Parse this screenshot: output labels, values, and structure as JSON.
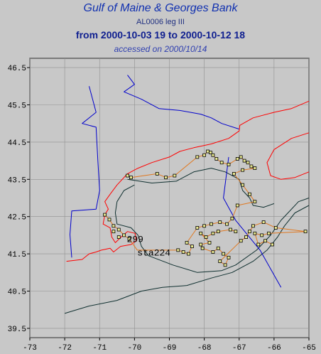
{
  "title": "Gulf of Maine & Georges Bank",
  "subtitle": "AL0006 leg III",
  "date_range": "from 2000-10-03 19 to 2000-10-12 18",
  "accessed": "accessed on 2000/10/14",
  "colors": {
    "coast": "#ff0000",
    "track": "#e07820",
    "boundary": "#0000cc",
    "isobath": "#103030",
    "station": "#e8e890",
    "background": "#c8c8c8",
    "grid": "#909090"
  },
  "axes": {
    "lon_range": [
      -73,
      -65
    ],
    "lat_range": [
      39.25,
      46.75
    ],
    "lon_ticks": [
      "-73",
      "-72",
      "-71",
      "-70",
      "-69",
      "-68",
      "-67",
      "-66",
      "-65"
    ],
    "lat_ticks": [
      "46.5",
      "45.5",
      "44.5",
      "43.5",
      "42.5",
      "41.5",
      "40.5",
      "39.5"
    ]
  },
  "station_labels": [
    {
      "text": "299",
      "lon": -70.22,
      "lat": 41.82
    },
    {
      "text": "sta224",
      "lon": -69.92,
      "lat": 41.45
    }
  ],
  "stations": [
    [
      -70.85,
      42.55
    ],
    [
      -70.72,
      42.42
    ],
    [
      -70.6,
      42.25
    ],
    [
      -70.45,
      42.15
    ],
    [
      -70.3,
      42.0
    ],
    [
      -70.15,
      41.9
    ],
    [
      -70.6,
      42.1
    ],
    [
      -70.45,
      41.95
    ],
    [
      -70.2,
      43.6
    ],
    [
      -70.1,
      43.55
    ],
    [
      -69.35,
      43.65
    ],
    [
      -69.1,
      43.55
    ],
    [
      -68.85,
      43.6
    ],
    [
      -68.2,
      44.1
    ],
    [
      -68.0,
      44.15
    ],
    [
      -67.9,
      44.25
    ],
    [
      -67.82,
      44.22
    ],
    [
      -67.75,
      44.15
    ],
    [
      -67.65,
      44.05
    ],
    [
      -67.5,
      43.95
    ],
    [
      -67.3,
      43.9
    ],
    [
      -67.05,
      44.05
    ],
    [
      -66.95,
      44.1
    ],
    [
      -66.85,
      44.0
    ],
    [
      -66.75,
      43.95
    ],
    [
      -66.65,
      43.85
    ],
    [
      -66.55,
      43.8
    ],
    [
      -66.9,
      43.75
    ],
    [
      -67.15,
      43.65
    ],
    [
      -66.9,
      43.35
    ],
    [
      -66.7,
      43.1
    ],
    [
      -66.55,
      42.9
    ],
    [
      -67.05,
      42.8
    ],
    [
      -67.2,
      42.45
    ],
    [
      -67.35,
      42.3
    ],
    [
      -67.55,
      42.35
    ],
    [
      -67.8,
      42.3
    ],
    [
      -68.0,
      42.25
    ],
    [
      -68.2,
      42.2
    ],
    [
      -68.1,
      42.05
    ],
    [
      -67.95,
      41.95
    ],
    [
      -67.85,
      41.8
    ],
    [
      -68.1,
      41.75
    ],
    [
      -68.35,
      41.7
    ],
    [
      -68.5,
      41.8
    ],
    [
      -68.6,
      41.55
    ],
    [
      -68.45,
      41.5
    ],
    [
      -67.6,
      41.65
    ],
    [
      -67.45,
      41.5
    ],
    [
      -67.3,
      41.4
    ],
    [
      -67.4,
      41.2
    ],
    [
      -67.55,
      41.3
    ],
    [
      -66.95,
      41.85
    ],
    [
      -66.8,
      41.95
    ],
    [
      -66.7,
      42.1
    ],
    [
      -66.55,
      42.05
    ],
    [
      -66.35,
      42.0
    ],
    [
      -66.25,
      41.85
    ],
    [
      -66.05,
      41.75
    ],
    [
      -66.15,
      42.05
    ],
    [
      -65.95,
      42.2
    ],
    [
      -65.1,
      42.1
    ],
    [
      -67.1,
      42.1
    ],
    [
      -67.25,
      42.15
    ],
    [
      -68.05,
      41.65
    ],
    [
      -67.75,
      41.55
    ],
    [
      -66.45,
      41.75
    ],
    [
      -68.75,
      41.6
    ],
    [
      -66.6,
      42.25
    ],
    [
      -66.3,
      42.35
    ],
    [
      -67.6,
      42.1
    ],
    [
      -67.75,
      42.05
    ]
  ],
  "track": [
    [
      -70.85,
      42.55
    ],
    [
      -70.72,
      42.42
    ],
    [
      -70.6,
      42.25
    ],
    [
      -70.45,
      42.15
    ],
    [
      -70.3,
      42.0
    ],
    [
      -70.15,
      41.9
    ],
    [
      -69.92,
      41.6
    ],
    [
      -68.75,
      41.6
    ],
    [
      -68.6,
      41.55
    ],
    [
      -68.45,
      41.5
    ],
    [
      -68.35,
      41.7
    ],
    [
      -68.5,
      41.8
    ],
    [
      -68.2,
      42.2
    ],
    [
      -68.0,
      42.25
    ],
    [
      -67.8,
      42.3
    ],
    [
      -67.55,
      42.35
    ],
    [
      -67.35,
      42.3
    ],
    [
      -67.2,
      42.45
    ],
    [
      -67.05,
      42.8
    ],
    [
      -66.55,
      42.9
    ],
    [
      -66.7,
      43.1
    ],
    [
      -66.9,
      43.35
    ],
    [
      -67.15,
      43.65
    ],
    [
      -66.9,
      43.75
    ],
    [
      -66.55,
      43.8
    ],
    [
      -66.65,
      43.85
    ],
    [
      -66.75,
      43.95
    ],
    [
      -66.85,
      44.0
    ],
    [
      -66.95,
      44.1
    ],
    [
      -67.05,
      44.05
    ],
    [
      -67.3,
      43.9
    ],
    [
      -67.5,
      43.95
    ],
    [
      -67.65,
      44.05
    ],
    [
      -67.75,
      44.15
    ],
    [
      -67.82,
      44.22
    ],
    [
      -67.9,
      44.25
    ],
    [
      -68.0,
      44.15
    ],
    [
      -68.2,
      44.1
    ],
    [
      -68.85,
      43.6
    ],
    [
      -69.1,
      43.55
    ],
    [
      -69.35,
      43.65
    ],
    [
      -70.1,
      43.55
    ],
    [
      -70.2,
      43.6
    ]
  ],
  "track2": [
    [
      -67.1,
      42.1
    ],
    [
      -67.25,
      42.15
    ],
    [
      -67.6,
      42.1
    ],
    [
      -67.75,
      42.05
    ],
    [
      -67.95,
      41.95
    ],
    [
      -68.1,
      42.05
    ],
    [
      -67.85,
      41.8
    ],
    [
      -68.1,
      41.75
    ],
    [
      -68.05,
      41.65
    ],
    [
      -67.75,
      41.55
    ],
    [
      -67.6,
      41.65
    ],
    [
      -67.45,
      41.5
    ],
    [
      -67.3,
      41.4
    ],
    [
      -67.4,
      41.2
    ],
    [
      -67.55,
      41.3
    ],
    [
      -66.95,
      41.85
    ],
    [
      -66.8,
      41.95
    ],
    [
      -66.7,
      42.1
    ],
    [
      -66.6,
      42.25
    ],
    [
      -66.3,
      42.35
    ],
    [
      -65.95,
      42.2
    ],
    [
      -65.1,
      42.1
    ],
    [
      -66.15,
      42.05
    ],
    [
      -66.35,
      42.0
    ],
    [
      -66.55,
      42.05
    ],
    [
      -66.45,
      41.75
    ],
    [
      -66.25,
      41.85
    ],
    [
      -66.05,
      41.75
    ]
  ],
  "coast": [
    [
      -71.95,
      41.3
    ],
    [
      -71.5,
      41.35
    ],
    [
      -71.3,
      41.5
    ],
    [
      -71.1,
      41.55
    ],
    [
      -70.95,
      41.6
    ],
    [
      -70.7,
      41.65
    ],
    [
      -70.6,
      41.55
    ],
    [
      -70.4,
      41.7
    ],
    [
      -70.1,
      41.75
    ],
    [
      -69.95,
      41.85
    ],
    [
      -69.98,
      42.05
    ],
    [
      -70.2,
      42.1
    ],
    [
      -70.35,
      41.98
    ],
    [
      -70.55,
      41.8
    ],
    [
      -70.65,
      41.95
    ],
    [
      -70.7,
      42.2
    ],
    [
      -70.9,
      42.3
    ],
    [
      -70.85,
      42.55
    ],
    [
      -70.75,
      42.7
    ],
    [
      -70.85,
      42.9
    ],
    [
      -70.7,
      43.1
    ],
    [
      -70.5,
      43.35
    ],
    [
      -70.2,
      43.65
    ],
    [
      -69.9,
      43.8
    ],
    [
      -69.5,
      43.95
    ],
    [
      -69.0,
      44.1
    ],
    [
      -68.7,
      44.25
    ],
    [
      -68.3,
      44.35
    ],
    [
      -67.8,
      44.45
    ],
    [
      -67.3,
      44.6
    ],
    [
      -67.0,
      44.8
    ],
    [
      -66.98,
      44.95
    ],
    [
      -66.6,
      45.15
    ],
    [
      -66.0,
      45.3
    ],
    [
      -65.5,
      45.4
    ],
    [
      -65.0,
      45.6
    ]
  ],
  "coast_ns": [
    [
      -65.0,
      44.75
    ],
    [
      -65.5,
      44.6
    ],
    [
      -66.0,
      44.3
    ],
    [
      -66.2,
      43.95
    ],
    [
      -66.1,
      43.6
    ],
    [
      -65.8,
      43.5
    ],
    [
      -65.4,
      43.55
    ],
    [
      -65.0,
      43.7
    ]
  ],
  "isobath": [
    [
      -70.0,
      43.35
    ],
    [
      -70.3,
      43.2
    ],
    [
      -70.5,
      42.9
    ],
    [
      -70.55,
      42.6
    ],
    [
      -70.5,
      42.3
    ],
    [
      -70.1,
      42.2
    ],
    [
      -69.9,
      42.0
    ],
    [
      -69.8,
      41.7
    ],
    [
      -69.6,
      41.45
    ],
    [
      -68.9,
      41.2
    ],
    [
      -68.2,
      41.0
    ],
    [
      -67.5,
      41.05
    ],
    [
      -67.1,
      41.2
    ],
    [
      -66.5,
      41.6
    ],
    [
      -66.1,
      42.0
    ],
    [
      -65.8,
      42.4
    ],
    [
      -65.6,
      42.6
    ],
    [
      -65.3,
      42.9
    ],
    [
      -65.0,
      43.0
    ]
  ],
  "isobath_deep": [
    [
      -72.0,
      39.9
    ],
    [
      -71.3,
      40.1
    ],
    [
      -70.5,
      40.25
    ],
    [
      -69.8,
      40.5
    ],
    [
      -69.2,
      40.6
    ],
    [
      -68.5,
      40.65
    ],
    [
      -67.8,
      40.85
    ],
    [
      -67.2,
      41.0
    ],
    [
      -66.6,
      41.3
    ],
    [
      -66.2,
      41.6
    ],
    [
      -65.9,
      41.95
    ],
    [
      -65.7,
      42.25
    ],
    [
      -65.4,
      42.6
    ],
    [
      -65.0,
      42.8
    ]
  ],
  "isobath_inner": [
    [
      -70.2,
      43.5
    ],
    [
      -69.5,
      43.4
    ],
    [
      -68.8,
      43.45
    ],
    [
      -68.3,
      43.7
    ],
    [
      -67.8,
      43.8
    ],
    [
      -67.4,
      43.7
    ],
    [
      -67.0,
      43.5
    ],
    [
      -66.9,
      43.2
    ],
    [
      -66.7,
      43.0
    ],
    [
      -66.6,
      42.8
    ],
    [
      -66.3,
      42.75
    ],
    [
      -66.0,
      42.85
    ]
  ],
  "boundary": [
    [
      -71.3,
      46.0
    ],
    [
      -71.1,
      45.3
    ],
    [
      -71.5,
      45.0
    ],
    [
      -71.1,
      44.9
    ],
    [
      -71.05,
      44.0
    ],
    [
      -71.0,
      43.2
    ],
    [
      -71.1,
      42.7
    ],
    [
      -71.8,
      42.65
    ],
    [
      -71.85,
      42.02
    ],
    [
      -71.8,
      41.4
    ]
  ],
  "boundary_me": [
    [
      -70.2,
      46.3
    ],
    [
      -70.0,
      46.05
    ],
    [
      -70.3,
      45.85
    ],
    [
      -69.8,
      45.65
    ],
    [
      -69.3,
      45.4
    ],
    [
      -68.7,
      45.35
    ],
    [
      -68.1,
      45.25
    ],
    [
      -67.8,
      45.15
    ],
    [
      -67.5,
      45.0
    ],
    [
      -67.0,
      44.85
    ]
  ],
  "hague_line": [
    [
      -67.3,
      44.1
    ],
    [
      -67.45,
      43.0
    ],
    [
      -67.1,
      42.4
    ],
    [
      -66.4,
      41.6
    ],
    [
      -65.8,
      40.6
    ]
  ]
}
